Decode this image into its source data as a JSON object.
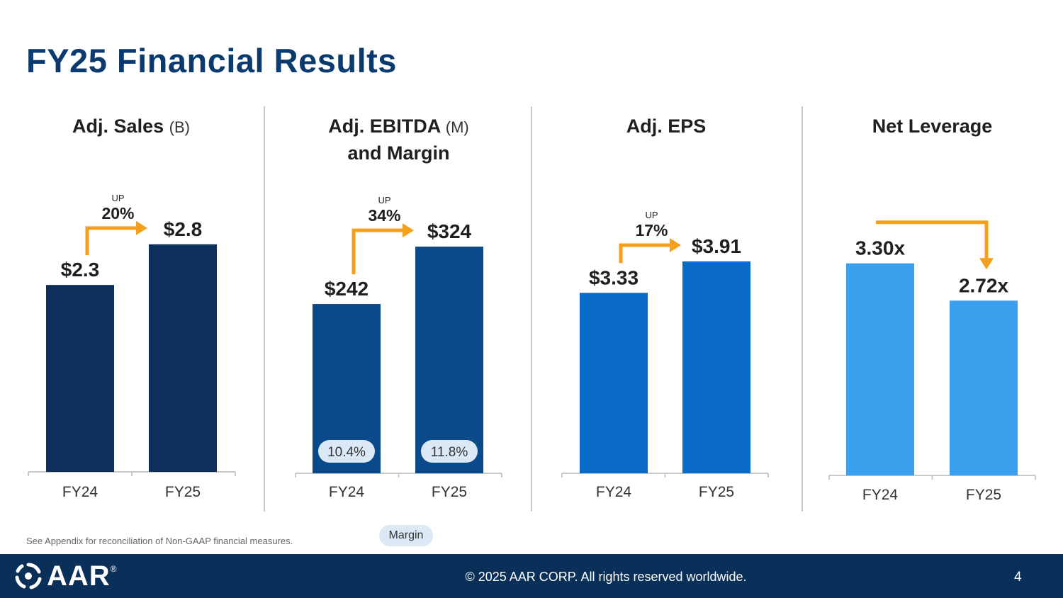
{
  "slide": {
    "title": "FY25 Financial Results",
    "note": "See Appendix for reconciliation of Non-GAAP financial measures.",
    "legend_label": "Margin",
    "footer_text": "© 2025 AAR CORP. All rights reserved worldwide.",
    "page_number": "4",
    "logo_text": "AAR",
    "logo_registered": "®"
  },
  "panels": [
    {
      "title": "Adj. Sales",
      "unit": "(B)",
      "title2": ""
    },
    {
      "title": "Adj. EBITDA",
      "unit": "(M)",
      "title2": "and Margin"
    },
    {
      "title": "Adj. EPS",
      "unit": "",
      "title2": ""
    },
    {
      "title": "Net Leverage",
      "unit": "",
      "title2": ""
    }
  ],
  "chart_data": [
    {
      "type": "bar",
      "title": "Adj. Sales (B)",
      "categories": [
        "FY24",
        "FY25"
      ],
      "values": [
        2.3,
        2.8
      ],
      "labels": [
        "$2.3",
        "$2.8"
      ],
      "ylim": [
        0,
        3.4
      ],
      "color": "#0d2f5c",
      "annotation": {
        "direction": "up",
        "word": "UP",
        "pct": "20%"
      }
    },
    {
      "type": "bar",
      "title": "Adj. EBITDA (M) and Margin",
      "categories": [
        "FY24",
        "FY25"
      ],
      "values": [
        242,
        324
      ],
      "labels": [
        "$242",
        "$324"
      ],
      "ylim": [
        0,
        395
      ],
      "color": "#0a4a8a",
      "margins": [
        "10.4%",
        "11.8%"
      ],
      "annotation": {
        "direction": "up",
        "word": "UP",
        "pct": "34%"
      }
    },
    {
      "type": "bar",
      "title": "Adj. EPS",
      "categories": [
        "FY24",
        "FY25"
      ],
      "values": [
        3.33,
        3.91
      ],
      "labels": [
        "$3.33",
        "$3.91"
      ],
      "ylim": [
        0,
        5.1
      ],
      "color": "#0a6bc6",
      "annotation": {
        "direction": "up",
        "word": "UP",
        "pct": "17%"
      }
    },
    {
      "type": "bar",
      "title": "Net Leverage",
      "categories": [
        "FY24",
        "FY25"
      ],
      "values": [
        3.3,
        2.72
      ],
      "labels": [
        "3.30x",
        "2.72x"
      ],
      "ylim": [
        0,
        4.3
      ],
      "color": "#3aa0ee",
      "annotation": {
        "direction": "down",
        "word": "",
        "pct": ""
      }
    }
  ]
}
